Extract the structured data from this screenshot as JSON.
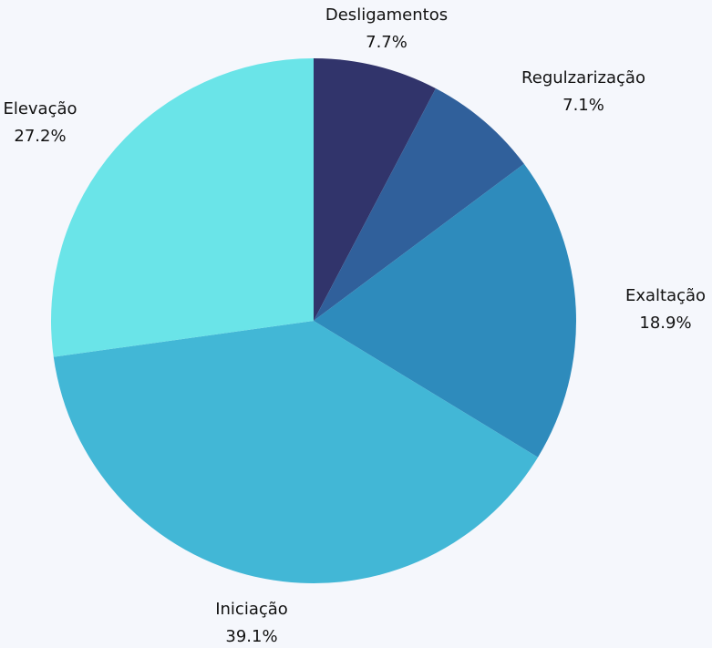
{
  "chart_data": {
    "type": "pie",
    "title": "",
    "slices": [
      {
        "label": "Desligamentos",
        "value": 7.7,
        "display": "7.7%",
        "color": "#31346b"
      },
      {
        "label": "Regulzarização",
        "value": 7.1,
        "display": "7.1%",
        "color": "#30609b"
      },
      {
        "label": "Exaltação",
        "value": 18.9,
        "display": "18.9%",
        "color": "#2e8bbc"
      },
      {
        "label": "Iniciação",
        "value": 39.1,
        "display": "39.1%",
        "color": "#42b7d6"
      },
      {
        "label": "Elevação",
        "value": 27.2,
        "display": "27.2%",
        "color": "#6ae4e8"
      }
    ],
    "start_angle_deg": 0,
    "direction": "clockwise",
    "legend": "none"
  }
}
